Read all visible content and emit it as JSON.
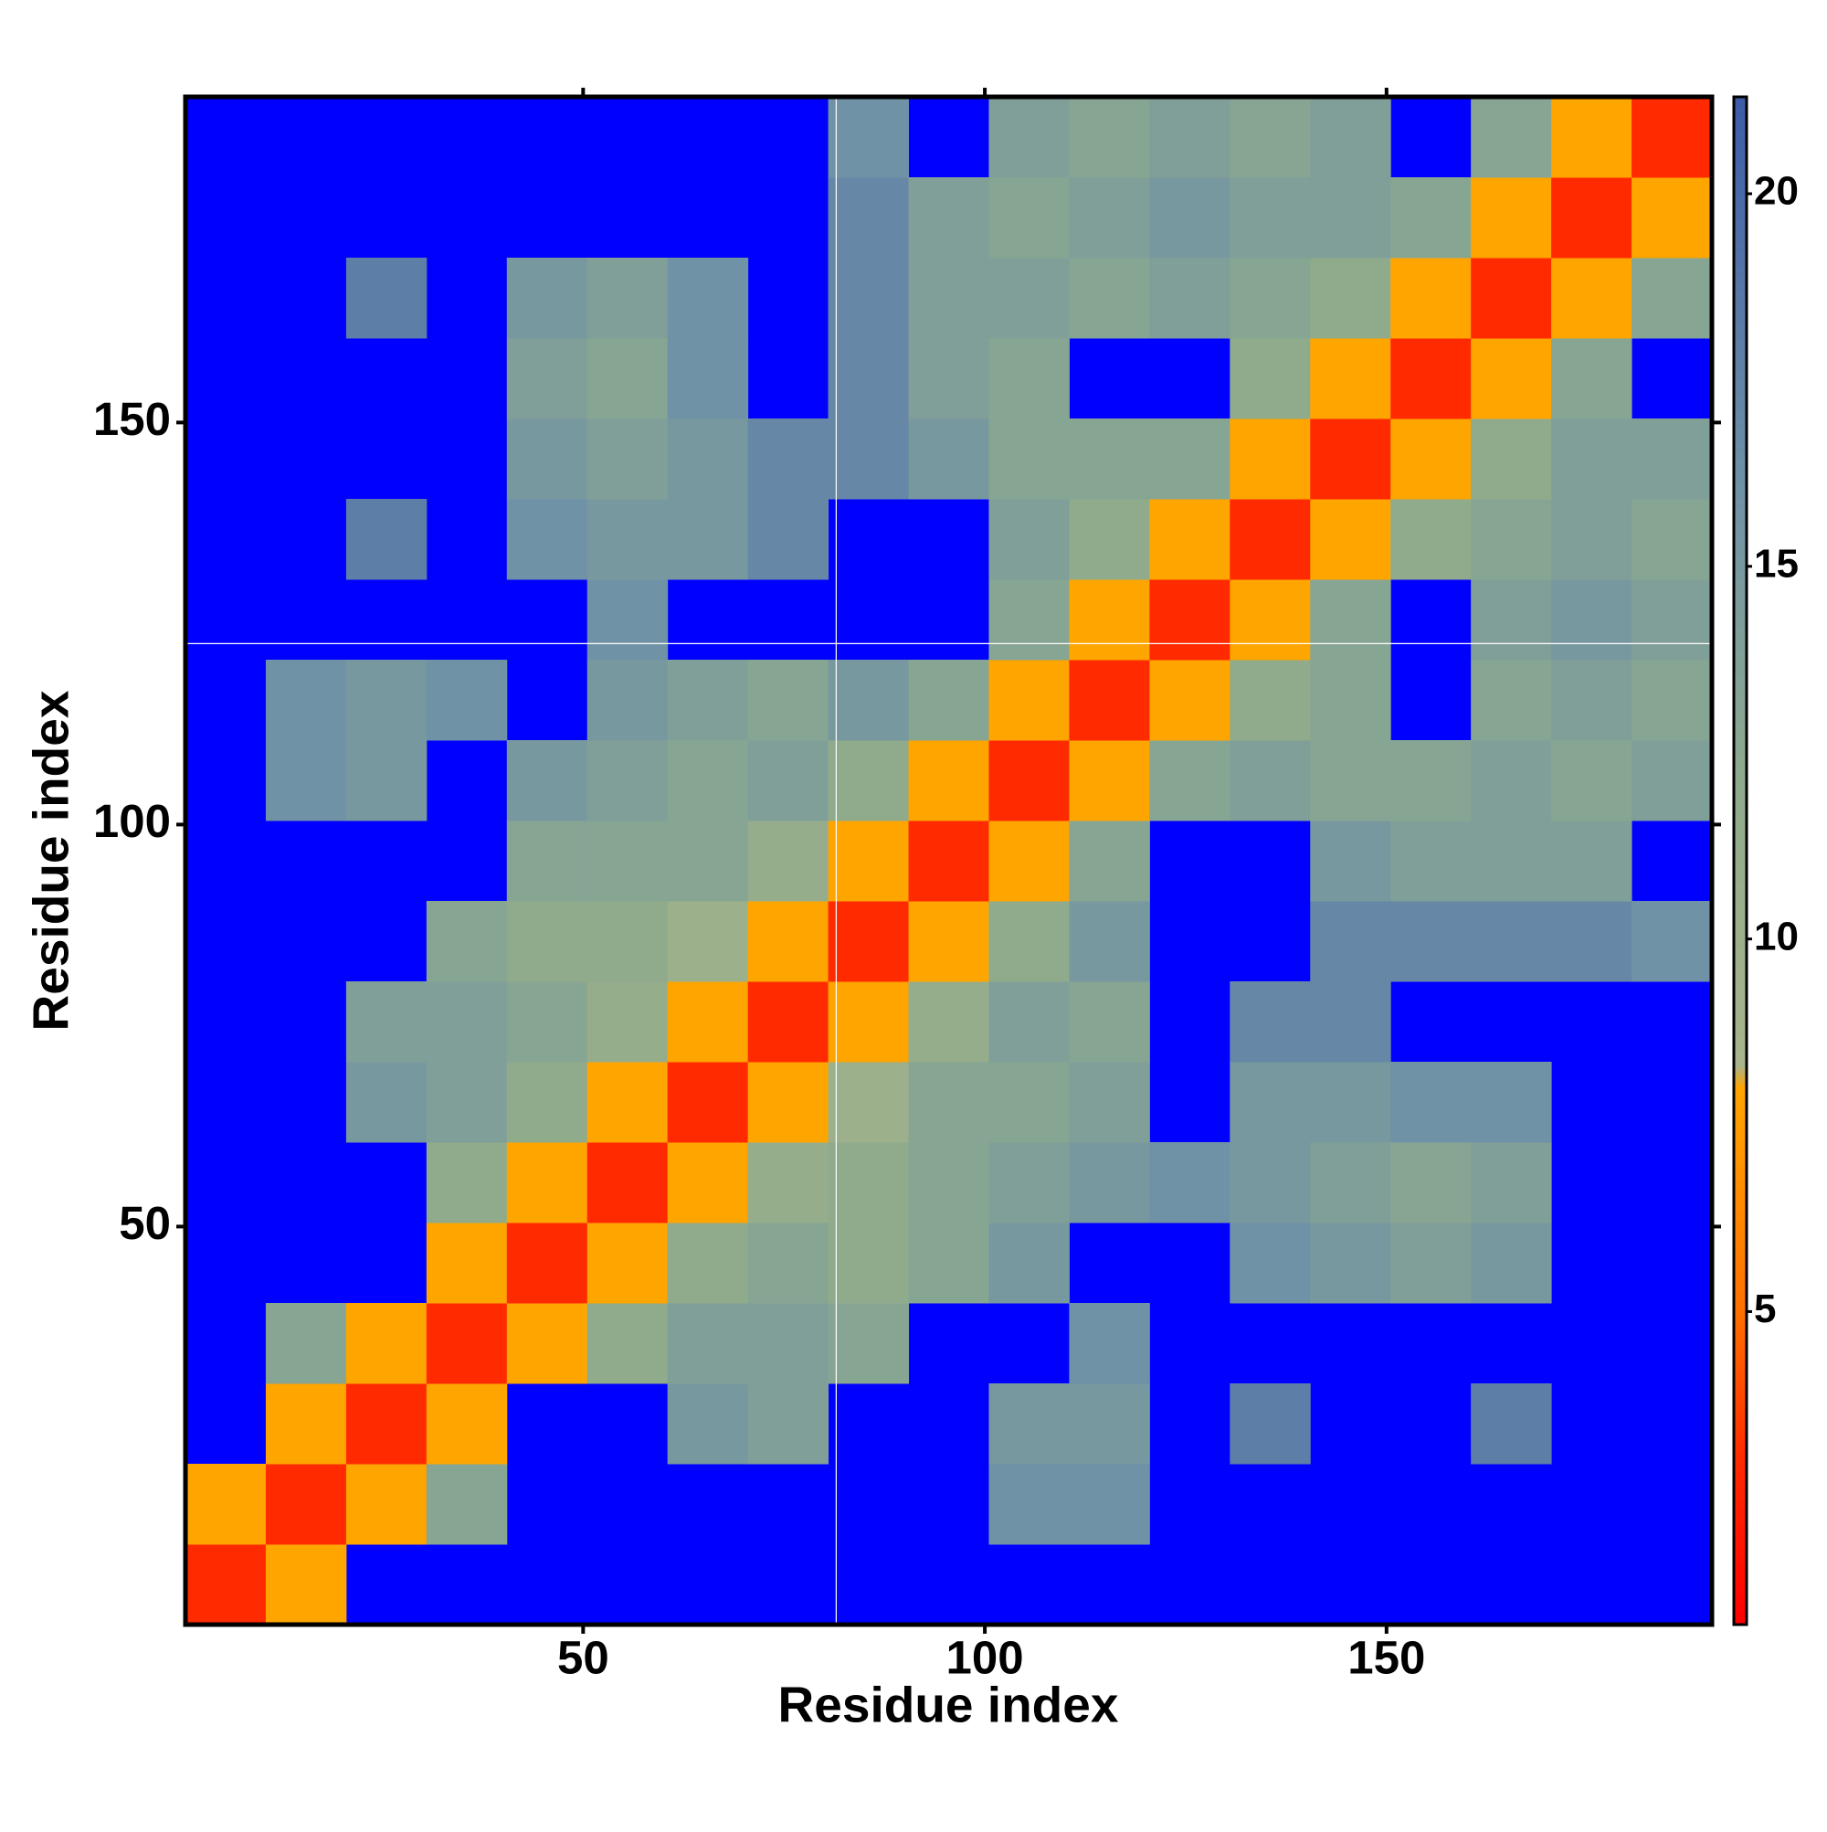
{
  "chart_data": {
    "type": "heatmap",
    "xlabel": "Residue index",
    "ylabel": "Residue index",
    "xbins": [
      0.5,
      10.5,
      20.5,
      30.5,
      40.5,
      50.5,
      60.5,
      70.5,
      80.5,
      90.5,
      100.5,
      110.5,
      120.5,
      130.5,
      140.5,
      150.5,
      160.5,
      170.5,
      180.5,
      190.5
    ],
    "ybins": [
      0.5,
      10.5,
      20.5,
      30.5,
      40.5,
      50.5,
      60.5,
      70.5,
      80.5,
      90.5,
      100.5,
      110.5,
      120.5,
      130.5,
      140.5,
      150.5,
      160.5,
      170.5,
      180.5,
      190.5
    ],
    "z": [
      [
        3,
        8,
        null,
        null,
        null,
        null,
        null,
        null,
        null,
        null,
        null,
        null,
        null,
        null,
        null,
        null,
        null,
        null,
        null
      ],
      [
        8,
        3,
        8,
        13,
        null,
        null,
        null,
        null,
        null,
        null,
        16,
        16,
        null,
        null,
        null,
        null,
        null,
        null,
        null
      ],
      [
        null,
        8,
        3,
        8,
        null,
        null,
        15,
        14,
        null,
        null,
        15,
        15,
        null,
        18,
        null,
        null,
        18,
        null,
        null
      ],
      [
        null,
        13,
        8,
        3,
        8,
        12,
        14,
        14,
        13,
        null,
        null,
        16,
        null,
        null,
        null,
        null,
        null,
        null,
        null
      ],
      [
        null,
        null,
        null,
        8,
        3,
        8,
        12,
        13,
        12,
        13,
        15,
        null,
        null,
        16,
        15,
        14,
        15,
        null,
        null
      ],
      [
        null,
        null,
        null,
        12,
        8,
        3,
        8,
        11,
        12,
        13,
        14,
        15,
        16,
        15,
        14,
        13,
        14,
        null,
        null
      ],
      [
        null,
        null,
        15,
        14,
        12,
        8,
        3,
        8,
        10,
        13,
        13,
        14,
        null,
        15,
        15,
        16,
        16,
        null,
        null
      ],
      [
        null,
        null,
        14,
        14,
        13,
        11,
        8,
        3,
        8,
        11,
        14,
        13,
        null,
        17,
        17,
        null,
        null,
        null,
        null
      ],
      [
        null,
        null,
        null,
        13,
        12,
        12,
        10,
        8,
        3,
        8,
        12,
        15,
        null,
        null,
        17,
        17,
        17,
        17,
        16
      ],
      [
        null,
        null,
        null,
        null,
        13,
        13,
        13,
        11,
        8,
        3,
        8,
        13,
        null,
        null,
        15,
        14,
        14,
        14,
        null
      ],
      [
        null,
        16,
        15,
        null,
        15,
        14,
        13,
        14,
        12,
        8,
        3,
        8,
        13,
        14,
        13,
        13,
        14,
        13,
        14
      ],
      [
        null,
        16,
        15,
        16,
        null,
        15,
        14,
        13,
        15,
        13,
        8,
        3,
        8,
        12,
        13,
        null,
        13,
        14,
        13
      ],
      [
        null,
        null,
        null,
        null,
        null,
        16,
        null,
        null,
        null,
        null,
        13,
        8,
        3,
        8,
        13,
        null,
        14,
        15,
        14
      ],
      [
        null,
        null,
        18,
        null,
        16,
        15,
        15,
        17,
        null,
        null,
        14,
        12,
        8,
        3,
        8,
        12,
        13,
        14,
        13
      ],
      [
        null,
        null,
        null,
        null,
        15,
        14,
        15,
        17,
        17,
        15,
        13,
        13,
        13,
        8,
        3,
        8,
        12,
        14,
        14
      ],
      [
        null,
        null,
        null,
        null,
        14,
        13,
        16,
        null,
        17,
        14,
        13,
        null,
        null,
        12,
        8,
        3,
        8,
        13,
        null
      ],
      [
        null,
        null,
        18,
        null,
        15,
        14,
        16,
        null,
        17,
        14,
        14,
        13,
        14,
        13,
        12,
        8,
        3,
        8,
        13
      ],
      [
        null,
        null,
        null,
        null,
        null,
        null,
        null,
        null,
        17,
        14,
        13,
        14,
        15,
        14,
        14,
        13,
        8,
        3,
        8
      ],
      [
        null,
        null,
        null,
        null,
        null,
        null,
        null,
        null,
        16,
        null,
        14,
        13,
        14,
        13,
        14,
        null,
        13,
        8,
        3
      ]
    ],
    "xlim": [
      0.5,
      190.5
    ],
    "ylim": [
      0.5,
      190.5
    ],
    "xticks": [
      50,
      100,
      150
    ],
    "yticks": [
      50,
      100,
      150
    ],
    "zlim": [
      0.8,
      21.3
    ],
    "zticks": [
      5,
      10,
      15,
      20
    ],
    "colorscale": [
      [
        0.8,
        "#ff0000"
      ],
      [
        3,
        "#ff2a00"
      ],
      [
        5,
        "#ff7000"
      ],
      [
        8,
        "#ffa500"
      ],
      [
        8.3,
        "#a8b48c"
      ],
      [
        12,
        "#8fab8c"
      ],
      [
        16,
        "#7092a6"
      ],
      [
        21.3,
        "#3c5ca8"
      ]
    ],
    "na_color": "#0000ff",
    "vlines": [
      81.5
    ],
    "hlines": [
      122.5
    ],
    "line_color": "#ffffff"
  }
}
